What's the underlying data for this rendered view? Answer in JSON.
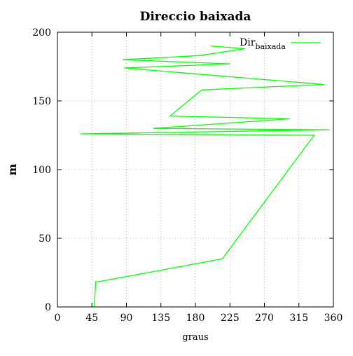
{
  "chart_data": {
    "type": "line",
    "title": "Direccio baixada",
    "xlabel": "graus",
    "ylabel": "m",
    "xlim": [
      0,
      360
    ],
    "ylim": [
      0,
      200
    ],
    "xticks": [
      0,
      45,
      90,
      135,
      180,
      225,
      270,
      315,
      360
    ],
    "yticks": [
      0,
      50,
      100,
      150,
      200
    ],
    "grid": true,
    "legend_position": "top-right",
    "series": [
      {
        "name": "Dir",
        "name_subscript": "baixada",
        "color": "#00ff00",
        "points": [
          [
            48,
            0
          ],
          [
            50,
            18
          ],
          [
            215,
            35
          ],
          [
            335,
            125
          ],
          [
            30,
            126
          ],
          [
            355,
            129
          ],
          [
            125,
            130
          ],
          [
            303,
            137
          ],
          [
            147,
            139
          ],
          [
            188,
            158
          ],
          [
            348,
            162
          ],
          [
            87,
            174
          ],
          [
            225,
            177
          ],
          [
            85,
            180
          ],
          [
            185,
            183
          ],
          [
            245,
            188
          ],
          [
            200,
            190
          ]
        ]
      }
    ]
  }
}
